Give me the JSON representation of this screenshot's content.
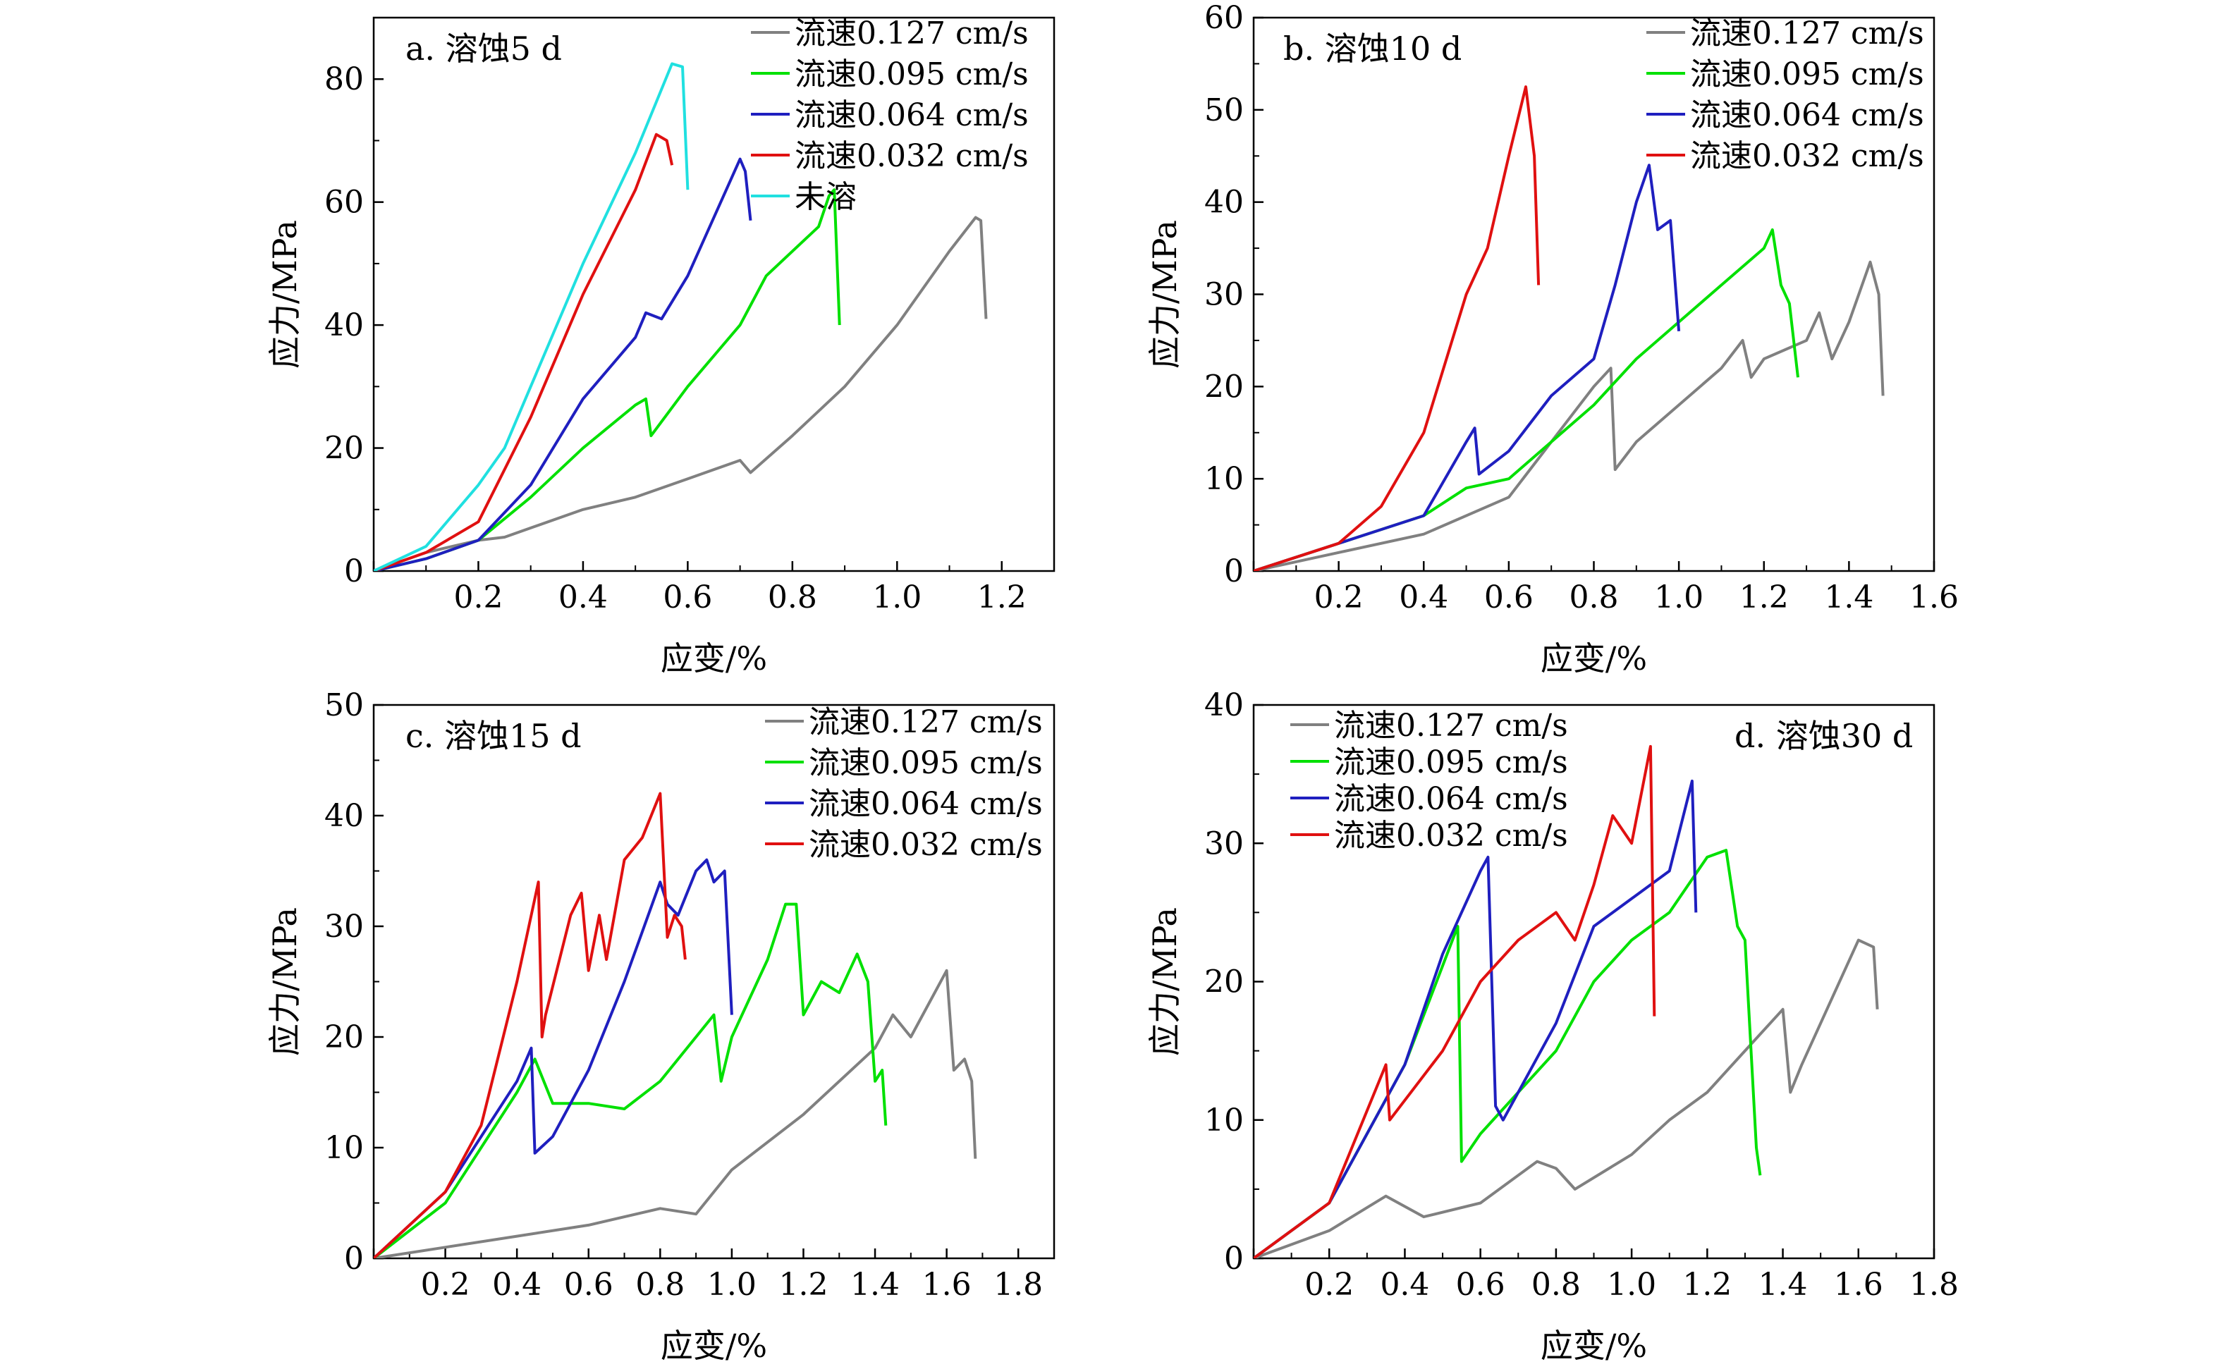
{
  "chart_data": [
    {
      "type": "line",
      "title": "a. 溶蚀5 d",
      "xlabel": "应变/%",
      "ylabel": "应力/MPa",
      "xlim": [
        0,
        1.3
      ],
      "ylim": [
        0,
        90
      ],
      "xticks": [
        0.2,
        0.4,
        0.6,
        0.8,
        1.0,
        1.2
      ],
      "xtick_labels": [
        "0.2",
        "0.4",
        "0.6",
        "0.8",
        "1.0",
        "1.2"
      ],
      "yticks": [
        0,
        20,
        40,
        60,
        80
      ],
      "ytick_labels": [
        "0",
        "20",
        "40",
        "60",
        "80"
      ],
      "legend_position": "top-right",
      "series": [
        {
          "name": "流速0.127 cm/s",
          "color": "#808080",
          "x": [
            0,
            0.1,
            0.2,
            0.25,
            0.3,
            0.4,
            0.5,
            0.6,
            0.7,
            0.72,
            0.8,
            0.9,
            1.0,
            1.1,
            1.15,
            1.16,
            1.17
          ],
          "y": [
            0,
            3,
            5,
            5.5,
            7,
            10,
            12,
            15,
            18,
            16,
            22,
            30,
            40,
            52,
            57.5,
            57,
            41
          ]
        },
        {
          "name": "流速0.095 cm/s",
          "color": "#00e000",
          "x": [
            0,
            0.1,
            0.2,
            0.3,
            0.4,
            0.5,
            0.52,
            0.53,
            0.6,
            0.7,
            0.75,
            0.8,
            0.85,
            0.87,
            0.88,
            0.89
          ],
          "y": [
            0,
            2,
            5,
            12,
            20,
            27,
            28,
            22,
            30,
            40,
            48,
            52,
            56,
            61,
            62,
            40
          ]
        },
        {
          "name": "流速0.064 cm/s",
          "color": "#1f1fbf",
          "x": [
            0,
            0.1,
            0.2,
            0.3,
            0.4,
            0.5,
            0.52,
            0.55,
            0.6,
            0.7,
            0.71,
            0.72
          ],
          "y": [
            0,
            2,
            5,
            14,
            28,
            38,
            42,
            41,
            48,
            67,
            65,
            57
          ]
        },
        {
          "name": "流速0.032 cm/s",
          "color": "#e01010",
          "x": [
            0,
            0.1,
            0.2,
            0.3,
            0.4,
            0.5,
            0.54,
            0.56,
            0.57
          ],
          "y": [
            0,
            3,
            8,
            25,
            45,
            62,
            71,
            70,
            66
          ]
        },
        {
          "name": "未溶",
          "color": "#20e0e0",
          "x": [
            0,
            0.1,
            0.2,
            0.25,
            0.3,
            0.4,
            0.5,
            0.57,
            0.59,
            0.6
          ],
          "y": [
            0,
            4,
            14,
            20,
            30,
            50,
            68,
            82.5,
            82,
            62
          ]
        }
      ]
    },
    {
      "type": "line",
      "title": "b. 溶蚀10 d",
      "xlabel": "应变/%",
      "ylabel": "应力/MPa",
      "xlim": [
        0,
        1.6
      ],
      "ylim": [
        0,
        60
      ],
      "xticks": [
        0.2,
        0.4,
        0.6,
        0.8,
        1.0,
        1.2,
        1.4,
        1.6
      ],
      "xtick_labels": [
        "0.2",
        "0.4",
        "0.6",
        "0.8",
        "1.0",
        "1.2",
        "1.4",
        "1.6"
      ],
      "yticks": [
        0,
        10,
        20,
        30,
        40,
        50,
        60
      ],
      "ytick_labels": [
        "0",
        "10",
        "20",
        "30",
        "40",
        "50",
        "60"
      ],
      "legend_position": "top-right",
      "series": [
        {
          "name": "流速0.127 cm/s",
          "color": "#808080",
          "x": [
            0,
            0.2,
            0.4,
            0.6,
            0.8,
            0.84,
            0.85,
            0.9,
            1.0,
            1.1,
            1.15,
            1.17,
            1.2,
            1.3,
            1.33,
            1.36,
            1.4,
            1.45,
            1.47,
            1.48
          ],
          "y": [
            0,
            2,
            4,
            8,
            20,
            22,
            11,
            14,
            18,
            22,
            25,
            21,
            23,
            25,
            28,
            23,
            27,
            33.5,
            30,
            19
          ]
        },
        {
          "name": "流速0.095 cm/s",
          "color": "#00e000",
          "x": [
            0,
            0.2,
            0.4,
            0.5,
            0.6,
            0.8,
            0.9,
            1.0,
            1.1,
            1.2,
            1.22,
            1.24,
            1.26,
            1.28
          ],
          "y": [
            0,
            3,
            6,
            9,
            10,
            18,
            23,
            27,
            31,
            35,
            37,
            31,
            29,
            21
          ]
        },
        {
          "name": "流速0.064 cm/s",
          "color": "#1f1fbf",
          "x": [
            0,
            0.2,
            0.4,
            0.5,
            0.52,
            0.53,
            0.6,
            0.7,
            0.8,
            0.85,
            0.9,
            0.93,
            0.95,
            0.98,
            1.0
          ],
          "y": [
            0,
            3,
            6,
            14,
            15.5,
            10.5,
            13,
            19,
            23,
            31,
            40,
            44,
            37,
            38,
            26
          ]
        },
        {
          "name": "流速0.032 cm/s",
          "color": "#e01010",
          "x": [
            0,
            0.2,
            0.3,
            0.4,
            0.5,
            0.55,
            0.6,
            0.64,
            0.66,
            0.67
          ],
          "y": [
            0,
            3,
            7,
            15,
            30,
            35,
            45,
            52.5,
            45,
            31
          ]
        }
      ]
    },
    {
      "type": "line",
      "title": "c. 溶蚀15 d",
      "xlabel": "应变/%",
      "ylabel": "应力/MPa",
      "xlim": [
        0,
        1.9
      ],
      "ylim": [
        0,
        50
      ],
      "xticks": [
        0.2,
        0.4,
        0.6,
        0.8,
        1.0,
        1.2,
        1.4,
        1.6,
        1.8
      ],
      "xtick_labels": [
        "0.2",
        "0.4",
        "0.6",
        "0.8",
        "1.0",
        "1.2",
        "1.4",
        "1.6",
        "1.8"
      ],
      "yticks": [
        0,
        10,
        20,
        30,
        40,
        50
      ],
      "ytick_labels": [
        "0",
        "10",
        "20",
        "30",
        "40",
        "50"
      ],
      "legend_position": "top-right",
      "series": [
        {
          "name": "流速0.127 cm/s",
          "color": "#808080",
          "x": [
            0,
            0.2,
            0.4,
            0.6,
            0.8,
            0.9,
            1.0,
            1.2,
            1.4,
            1.45,
            1.5,
            1.6,
            1.62,
            1.65,
            1.67,
            1.68
          ],
          "y": [
            0,
            1,
            2,
            3,
            4.5,
            4,
            8,
            13,
            19,
            22,
            20,
            26,
            17,
            18,
            16,
            9
          ]
        },
        {
          "name": "流速0.095 cm/s",
          "color": "#00e000",
          "x": [
            0,
            0.2,
            0.4,
            0.45,
            0.5,
            0.6,
            0.7,
            0.8,
            0.95,
            0.97,
            1.0,
            1.1,
            1.15,
            1.18,
            1.2,
            1.25,
            1.3,
            1.35,
            1.38,
            1.4,
            1.42,
            1.43
          ],
          "y": [
            0,
            5,
            15,
            18,
            14,
            14,
            13.5,
            16,
            22,
            16,
            20,
            27,
            32,
            32,
            22,
            25,
            24,
            27.5,
            25,
            16,
            17,
            12
          ]
        },
        {
          "name": "流速0.064 cm/s",
          "color": "#1f1fbf",
          "x": [
            0,
            0.2,
            0.4,
            0.44,
            0.45,
            0.5,
            0.6,
            0.7,
            0.8,
            0.82,
            0.85,
            0.9,
            0.93,
            0.95,
            0.98,
            1.0
          ],
          "y": [
            0,
            6,
            16,
            19,
            9.5,
            11,
            17,
            25,
            34,
            32,
            31,
            35,
            36,
            34,
            35,
            22
          ]
        },
        {
          "name": "流速0.032 cm/s",
          "color": "#e01010",
          "x": [
            0,
            0.2,
            0.3,
            0.4,
            0.46,
            0.47,
            0.48,
            0.55,
            0.58,
            0.6,
            0.63,
            0.65,
            0.7,
            0.75,
            0.8,
            0.82,
            0.84,
            0.86,
            0.87
          ],
          "y": [
            0,
            6,
            12,
            25,
            34,
            20,
            22,
            31,
            33,
            26,
            31,
            27,
            36,
            38,
            42,
            29,
            31,
            30,
            27
          ]
        }
      ]
    },
    {
      "type": "line",
      "title": "d. 溶蚀30 d",
      "xlabel": "应变/%",
      "ylabel": "应力/MPa",
      "xlim": [
        0,
        1.8
      ],
      "ylim": [
        0,
        40
      ],
      "xticks": [
        0.2,
        0.4,
        0.6,
        0.8,
        1.0,
        1.2,
        1.4,
        1.6,
        1.8
      ],
      "xtick_labels": [
        "0.2",
        "0.4",
        "0.6",
        "0.8",
        "1.0",
        "1.2",
        "1.4",
        "1.6",
        "1.8"
      ],
      "yticks": [
        0,
        10,
        20,
        30,
        40
      ],
      "ytick_labels": [
        "0",
        "10",
        "20",
        "30",
        "40"
      ],
      "legend_position": "top-left",
      "series": [
        {
          "name": "流速0.127 cm/s",
          "color": "#808080",
          "x": [
            0,
            0.2,
            0.35,
            0.45,
            0.6,
            0.75,
            0.8,
            0.85,
            1.0,
            1.1,
            1.2,
            1.3,
            1.4,
            1.42,
            1.45,
            1.5,
            1.6,
            1.64,
            1.65
          ],
          "y": [
            0,
            2,
            4.5,
            3,
            4,
            7,
            6.5,
            5,
            7.5,
            10,
            12,
            15,
            18,
            12,
            14,
            17,
            23,
            22.5,
            18
          ]
        },
        {
          "name": "流速0.095 cm/s",
          "color": "#00e000",
          "x": [
            0,
            0.2,
            0.4,
            0.54,
            0.55,
            0.6,
            0.7,
            0.8,
            0.9,
            1.0,
            1.1,
            1.2,
            1.25,
            1.28,
            1.3,
            1.33,
            1.34
          ],
          "y": [
            0,
            4,
            14,
            24,
            7,
            9,
            12,
            15,
            20,
            23,
            25,
            29,
            29.5,
            24,
            23,
            8,
            6
          ]
        },
        {
          "name": "流速0.064 cm/s",
          "color": "#1f1fbf",
          "x": [
            0,
            0.2,
            0.4,
            0.5,
            0.6,
            0.62,
            0.64,
            0.66,
            0.7,
            0.8,
            0.9,
            1.0,
            1.1,
            1.16,
            1.17
          ],
          "y": [
            0,
            4,
            14,
            22,
            28,
            29,
            11,
            10,
            12,
            17,
            24,
            26,
            28,
            34.5,
            25
          ]
        },
        {
          "name": "流速0.032 cm/s",
          "color": "#e01010",
          "x": [
            0,
            0.2,
            0.35,
            0.36,
            0.5,
            0.6,
            0.7,
            0.8,
            0.85,
            0.9,
            0.95,
            1.0,
            1.05,
            1.06
          ],
          "y": [
            0,
            4,
            14,
            10,
            15,
            20,
            23,
            25,
            23,
            27,
            32,
            30,
            37,
            17.5
          ]
        }
      ]
    }
  ]
}
